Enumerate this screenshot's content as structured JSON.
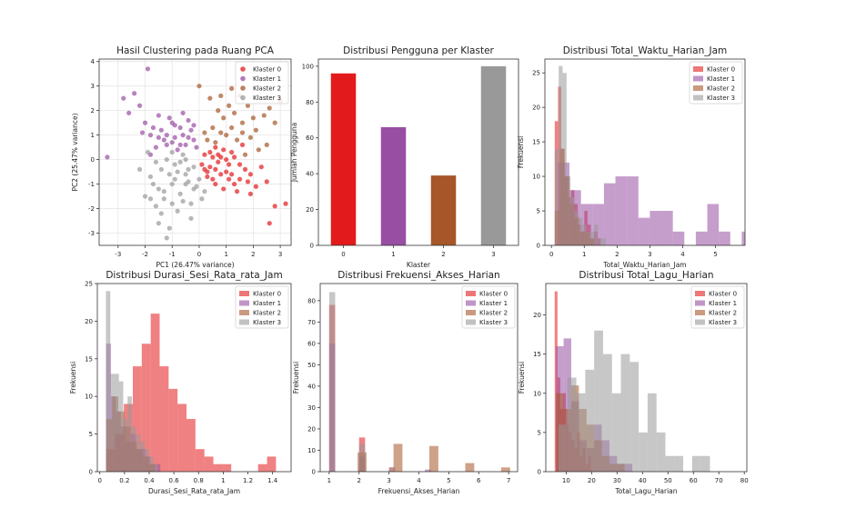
{
  "colors": {
    "k0": "#e31a1c",
    "k1": "#984ea3",
    "k2": "#a65628",
    "k3": "#999999"
  },
  "chart_data": [
    {
      "type": "scatter",
      "title": "Hasil Clustering pada Ruang PCA",
      "xlabel": "PC1 (26.47% variance)",
      "ylabel": "PC2 (25.47% variance)",
      "xlim": [
        -3.7,
        3.4
      ],
      "ylim": [
        -3.5,
        4.1
      ],
      "xticks": [
        -3,
        -2,
        -1,
        0,
        1,
        2,
        3
      ],
      "yticks": [
        -3,
        -2,
        -1,
        0,
        1,
        2,
        3,
        4
      ],
      "grid": true,
      "legend": "top-right",
      "legend_labels": [
        "Klaster 0",
        "Klaster 1",
        "Klaster 2",
        "Klaster 3"
      ],
      "series": [
        {
          "name": "Klaster 0",
          "points": [
            [
              0.4,
              -0.3
            ],
            [
              0.8,
              0.1
            ],
            [
              1.2,
              0.3
            ],
            [
              0.5,
              -0.8
            ],
            [
              1.0,
              -0.5
            ],
            [
              1.5,
              -0.2
            ],
            [
              0.2,
              0.2
            ],
            [
              0.6,
              0.5
            ],
            [
              1.3,
              -1.0
            ],
            [
              1.9,
              -0.6
            ],
            [
              2.5,
              -0.9
            ],
            [
              2.8,
              -1.9
            ],
            [
              3.2,
              -1.8
            ],
            [
              2.6,
              -2.6
            ],
            [
              0.9,
              -1.2
            ],
            [
              1.6,
              0.6
            ],
            [
              0.3,
              -0.5
            ],
            [
              0.7,
              -0.1
            ],
            [
              1.1,
              -0.8
            ],
            [
              1.4,
              -1.3
            ],
            [
              0.1,
              -0.2
            ],
            [
              0.9,
              0.4
            ],
            [
              1.7,
              -0.4
            ],
            [
              2.1,
              -1.1
            ],
            [
              1.0,
              0.0
            ],
            [
              0.5,
              0.1
            ],
            [
              1.2,
              -0.6
            ],
            [
              0.6,
              -1.0
            ],
            [
              1.8,
              -0.9
            ],
            [
              0.4,
              0.3
            ],
            [
              1.1,
              -0.2
            ],
            [
              0.3,
              -0.7
            ],
            [
              2.3,
              -0.3
            ],
            [
              0.8,
              -0.6
            ],
            [
              1.5,
              -0.8
            ],
            [
              0.7,
              0.2
            ],
            [
              1.3,
              0.1
            ],
            [
              0.2,
              -0.4
            ],
            [
              1.9,
              -1.4
            ],
            [
              0.6,
              -0.4
            ]
          ]
        },
        {
          "name": "Klaster 1",
          "points": [
            [
              -3.4,
              0.1
            ],
            [
              -2.8,
              2.5
            ],
            [
              -1.9,
              3.7
            ],
            [
              -2.2,
              2.2
            ],
            [
              -1.5,
              1.8
            ],
            [
              -1.0,
              1.5
            ],
            [
              -0.6,
              1.0
            ],
            [
              -0.2,
              0.8
            ],
            [
              -1.8,
              1.0
            ],
            [
              -1.2,
              0.6
            ],
            [
              -0.4,
              1.6
            ],
            [
              -0.8,
              0.4
            ],
            [
              -2.0,
              1.5
            ],
            [
              -1.4,
              1.2
            ],
            [
              -0.9,
              0.9
            ],
            [
              -0.5,
              0.6
            ],
            [
              -1.6,
              0.5
            ],
            [
              -0.3,
              1.2
            ],
            [
              -1.1,
              1.7
            ],
            [
              -0.7,
              1.3
            ],
            [
              -2.4,
              2.7
            ],
            [
              -1.7,
              1.3
            ],
            [
              -0.1,
              0.5
            ],
            [
              -1.3,
              0.8
            ],
            [
              -0.6,
              1.9
            ],
            [
              -2.1,
              1.1
            ],
            [
              -0.9,
              1.4
            ],
            [
              -1.5,
              0.9
            ],
            [
              -0.4,
              0.9
            ],
            [
              -1.0,
              0.7
            ],
            [
              -2.6,
              1.9
            ],
            [
              -0.2,
              1.4
            ],
            [
              -1.8,
              0.2
            ],
            [
              -1.2,
              1.0
            ],
            [
              -0.7,
              0.6
            ]
          ]
        },
        {
          "name": "Klaster 2",
          "points": [
            [
              0.0,
              3.0
            ],
            [
              0.8,
              2.6
            ],
            [
              1.2,
              2.9
            ],
            [
              1.6,
              1.5
            ],
            [
              2.1,
              1.2
            ],
            [
              2.6,
              2.1
            ],
            [
              3.0,
              2.4
            ],
            [
              2.4,
              1.8
            ],
            [
              1.8,
              2.2
            ],
            [
              0.5,
              1.3
            ],
            [
              1.0,
              1.0
            ],
            [
              1.4,
              0.8
            ],
            [
              2.2,
              0.4
            ],
            [
              0.7,
              2.0
            ],
            [
              1.9,
              0.9
            ],
            [
              0.3,
              0.8
            ],
            [
              2.8,
              1.5
            ],
            [
              1.5,
              2.6
            ],
            [
              0.9,
              1.7
            ],
            [
              2.0,
              1.7
            ],
            [
              0.6,
              0.7
            ],
            [
              1.2,
              1.3
            ],
            [
              0.2,
              1.1
            ],
            [
              1.7,
              0.2
            ],
            [
              2.5,
              0.6
            ],
            [
              0.4,
              2.5
            ],
            [
              1.1,
              2.2
            ],
            [
              1.6,
              1.1
            ],
            [
              0.8,
              1.1
            ],
            [
              1.3,
              1.9
            ]
          ]
        },
        {
          "name": "Klaster 3",
          "points": [
            [
              -2.0,
              -1.5
            ],
            [
              -1.5,
              -2.6
            ],
            [
              -1.2,
              -3.2
            ],
            [
              -0.8,
              -2.1
            ],
            [
              -1.0,
              -1.0
            ],
            [
              -0.5,
              -0.6
            ],
            [
              -0.2,
              -1.2
            ],
            [
              -1.8,
              -0.7
            ],
            [
              -1.4,
              -0.4
            ],
            [
              -0.6,
              0.2
            ],
            [
              -0.9,
              -0.2
            ],
            [
              -1.6,
              -1.9
            ],
            [
              -0.3,
              -1.8
            ],
            [
              0.1,
              -1.6
            ],
            [
              -1.1,
              -2.8
            ],
            [
              -0.7,
              -1.4
            ],
            [
              -1.3,
              -1.6
            ],
            [
              -0.4,
              -0.9
            ],
            [
              -1.9,
              0.3
            ],
            [
              -1.0,
              0.3
            ],
            [
              0.0,
              -0.8
            ],
            [
              -0.8,
              -0.5
            ],
            [
              -1.5,
              -1.2
            ],
            [
              -0.5,
              -1.0
            ],
            [
              -1.2,
              0.0
            ],
            [
              -0.2,
              -0.3
            ],
            [
              -1.7,
              -1.0
            ],
            [
              -0.9,
              -0.8
            ],
            [
              -0.3,
              -2.4
            ],
            [
              -1.4,
              -2.2
            ],
            [
              -0.6,
              -1.7
            ],
            [
              -1.1,
              -0.6
            ],
            [
              -0.1,
              -1.1
            ],
            [
              -2.2,
              -0.4
            ],
            [
              -0.7,
              -0.1
            ],
            [
              -1.3,
              -1.3
            ],
            [
              -0.4,
              -0.4
            ],
            [
              -1.8,
              -1.6
            ],
            [
              -1.0,
              -1.8
            ],
            [
              -0.5,
              0.0
            ],
            [
              0.2,
              -1.3
            ],
            [
              -1.6,
              -0.1
            ]
          ]
        }
      ]
    },
    {
      "type": "bar",
      "title": "Distribusi Pengguna per Klaster",
      "xlabel": "Klaster",
      "ylabel": "Jumlah Pengguna",
      "categories": [
        "0",
        "1",
        "2",
        "3"
      ],
      "values": [
        96,
        66,
        39,
        100
      ],
      "ylim": [
        0,
        104
      ],
      "yticks": [
        0,
        20,
        40,
        60,
        80,
        100
      ],
      "grid": false
    },
    {
      "type": "histogram",
      "title": "Distribusi Total_Waktu_Harian_Jam",
      "xlabel": "Total_Waktu_Harian_Jam",
      "ylabel": "Frekuensi",
      "xlim": [
        -0.2,
        5.9
      ],
      "ylim": [
        0,
        27
      ],
      "xticks": [
        0,
        1,
        2,
        3,
        4,
        5
      ],
      "yticks": [
        0,
        5,
        10,
        15,
        20,
        25
      ],
      "legend": "top-right",
      "legend_labels": [
        "Klaster 0",
        "Klaster 1",
        "Klaster 2",
        "Klaster 3"
      ],
      "series": [
        {
          "name": "Klaster 0",
          "start": 0.1,
          "width": 0.1,
          "counts": [
            18,
            23,
            14,
            10,
            7,
            8,
            6,
            3,
            2,
            5,
            3,
            1,
            2,
            1
          ]
        },
        {
          "name": "Klaster 1",
          "start": 0.2,
          "width": 0.35,
          "counts": [
            12,
            8,
            6,
            6,
            9,
            10,
            10,
            4,
            5,
            5,
            2,
            0,
            2,
            6,
            2,
            0,
            2
          ]
        },
        {
          "name": "Klaster 2",
          "start": 0.1,
          "width": 0.15,
          "counts": [
            5,
            14,
            10,
            6,
            4,
            2,
            2,
            1
          ]
        },
        {
          "name": "Klaster 3",
          "start": 0.1,
          "width": 0.12,
          "counts": [
            14,
            26,
            25,
            10,
            7,
            5,
            4,
            3,
            2,
            2,
            3,
            1,
            1
          ]
        }
      ]
    },
    {
      "type": "histogram",
      "title": "Distribusi Durasi_Sesi_Rata_rata_Jam",
      "xlabel": "Durasi_Sesi_Rata_rata_Jam",
      "ylabel": "Frekuensi",
      "xlim": [
        -0.02,
        1.55
      ],
      "ylim": [
        0,
        25
      ],
      "xticks": [
        0.0,
        0.2,
        0.4,
        0.6,
        0.8,
        1.0,
        1.2,
        1.4
      ],
      "yticks": [
        0,
        5,
        10,
        15,
        20,
        25
      ],
      "legend": "top-right",
      "legend_labels": [
        "Klaster 0",
        "Klaster 1",
        "Klaster 2",
        "Klaster 3"
      ],
      "series": [
        {
          "name": "Klaster 0",
          "start": 0.05,
          "width": 0.0725,
          "counts": [
            3,
            5,
            9,
            14,
            17,
            21,
            14,
            11,
            9,
            7,
            3,
            2,
            1,
            1,
            0,
            0,
            0,
            1,
            2
          ]
        },
        {
          "name": "Klaster 1",
          "start": 0.05,
          "width": 0.04,
          "counts": [
            17,
            10,
            8,
            6,
            4,
            5,
            3,
            3,
            2,
            1,
            1
          ]
        },
        {
          "name": "Klaster 2",
          "start": 0.05,
          "width": 0.05,
          "counts": [
            7,
            10,
            8,
            6,
            4,
            3,
            2,
            1
          ]
        },
        {
          "name": "Klaster 3",
          "start": 0.05,
          "width": 0.035,
          "counts": [
            24,
            13,
            13,
            12,
            7,
            10,
            6,
            5,
            4,
            3,
            2,
            1
          ]
        }
      ]
    },
    {
      "type": "histogram",
      "title": "Distribusi Frekuensi_Akses_Harian",
      "xlabel": "Frekuensi_Akses_Harian",
      "ylabel": "Frekuensi",
      "xlim": [
        0.7,
        7.3
      ],
      "ylim": [
        0,
        88
      ],
      "xticks": [
        1,
        2,
        3,
        4,
        5,
        6,
        7
      ],
      "yticks": [
        0,
        10,
        20,
        30,
        40,
        50,
        60,
        70,
        80
      ],
      "legend": "top-right",
      "legend_labels": [
        "Klaster 0",
        "Klaster 1",
        "Klaster 2",
        "Klaster 3"
      ],
      "series": [
        {
          "name": "Klaster 0",
          "start": 1.0,
          "width": 0.2,
          "counts": [
            78,
            0,
            0,
            0,
            0,
            16,
            0,
            0,
            0,
            0,
            2
          ]
        },
        {
          "name": "Klaster 1",
          "start": 1.0,
          "width": 0.2,
          "counts": [
            60,
            0,
            0,
            0,
            0,
            7,
            0,
            0,
            0,
            0,
            0,
            0,
            0,
            0,
            0,
            0,
            1
          ]
        },
        {
          "name": "Klaster 2",
          "start": 1.05,
          "width": 0.3,
          "counts": [
            0,
            0,
            0,
            9,
            0,
            0,
            0,
            13,
            0,
            0,
            0,
            12,
            0,
            0,
            0,
            4,
            0,
            0,
            0,
            2
          ]
        },
        {
          "name": "Klaster 3",
          "start": 1.0,
          "width": 0.2,
          "counts": [
            84,
            0,
            0,
            0,
            0,
            13,
            0,
            0,
            0,
            0,
            2
          ]
        }
      ]
    },
    {
      "type": "histogram",
      "title": "Distribusi Total_Lagu_Harian",
      "xlabel": "Total_Lagu_Harian",
      "ylabel": "Frekuensi",
      "xlim": [
        2,
        81
      ],
      "ylim": [
        0,
        24
      ],
      "xticks": [
        10,
        20,
        30,
        40,
        50,
        60,
        70,
        80
      ],
      "yticks": [
        0,
        5,
        10,
        15,
        20
      ],
      "legend": "top-right",
      "legend_labels": [
        "Klaster 0",
        "Klaster 1",
        "Klaster 2",
        "Klaster 3"
      ],
      "series": [
        {
          "name": "Klaster 0",
          "start": 5.5,
          "width": 1.1,
          "counts": [
            23,
            12,
            8,
            10,
            6,
            5,
            4,
            3,
            5,
            2,
            3,
            1,
            2
          ]
        },
        {
          "name": "Klaster 1",
          "start": 6,
          "width": 3,
          "counts": [
            16,
            17,
            9,
            4,
            3,
            6,
            4,
            2,
            1,
            1
          ]
        },
        {
          "name": "Klaster 2",
          "start": 6,
          "width": 3,
          "counts": [
            10,
            8,
            11,
            8,
            6,
            4,
            2,
            1,
            1
          ]
        },
        {
          "name": "Klaster 3",
          "start": 7,
          "width": 3.5,
          "counts": [
            6,
            12,
            10,
            13,
            18,
            15,
            10,
            15,
            14,
            5,
            10,
            5,
            2,
            2,
            0,
            2,
            2
          ]
        }
      ]
    }
  ]
}
